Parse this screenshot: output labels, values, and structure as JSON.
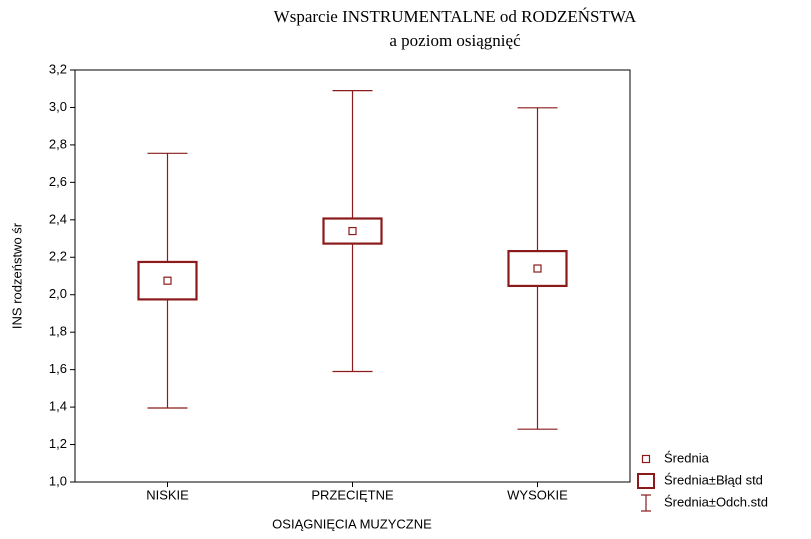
{
  "chart_data": {
    "type": "box",
    "title": [
      "Wsparcie INSTRUMENTALNE od RODZEŃSTWA",
      "a poziom osiągnięć"
    ],
    "x_label": "OSIĄGNIĘCIA MUZYCZNE",
    "y_label": "INS rodzeństwo śr",
    "categories": [
      "NISKIE",
      "PRZECIĘTNE",
      "WYSOKIE"
    ],
    "mean": [
      2.075,
      2.34,
      2.14
    ],
    "se": [
      0.1,
      0.067,
      0.093
    ],
    "sd": [
      0.68,
      0.75,
      0.858
    ],
    "color": "#8b1a1a",
    "ylim": [
      1.0,
      3.2
    ],
    "yticks": [
      {
        "value": 1.0,
        "label": "1,0"
      },
      {
        "value": 1.2,
        "label": "1,2"
      },
      {
        "value": 1.4,
        "label": "1,4"
      },
      {
        "value": 1.6,
        "label": "1,6"
      },
      {
        "value": 1.8,
        "label": "1,8"
      },
      {
        "value": 2.0,
        "label": "2,0"
      },
      {
        "value": 2.2,
        "label": "2,2"
      },
      {
        "value": 2.4,
        "label": "2,4"
      },
      {
        "value": 2.6,
        "label": "2,6"
      },
      {
        "value": 2.8,
        "label": "2,8"
      },
      {
        "value": 3.0,
        "label": "3,0"
      },
      {
        "value": 3.2,
        "label": "3,2"
      }
    ],
    "legend": [
      "Średnia",
      "Średnia±Błąd std",
      "Średnia±Odch.std"
    ],
    "legend_position": "lower right",
    "grid": false
  }
}
